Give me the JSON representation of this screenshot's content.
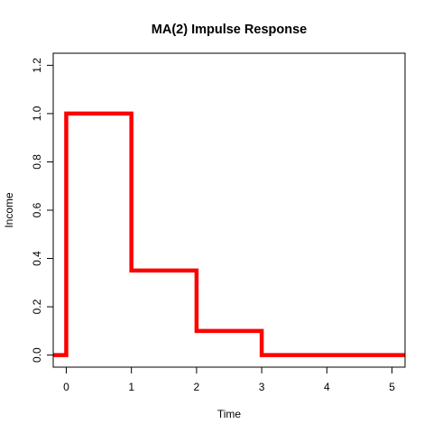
{
  "chart_data": {
    "type": "line",
    "step": true,
    "title": "MA(2) Impulse Response",
    "xlabel": "Time",
    "ylabel": "Income",
    "xlim": [
      -0.2,
      5.2
    ],
    "ylim": [
      -0.05,
      1.25
    ],
    "x_ticks": [
      0,
      1,
      2,
      3,
      4,
      5
    ],
    "x_tick_labels": [
      "0",
      "1",
      "2",
      "3",
      "4",
      "5"
    ],
    "y_ticks": [
      0.0,
      0.2,
      0.4,
      0.6,
      0.8,
      1.0,
      1.2
    ],
    "y_tick_labels": [
      "0.0",
      "0.2",
      "0.4",
      "0.6",
      "0.8",
      "1.0",
      "1.2"
    ],
    "grid": false,
    "series": [
      {
        "color": "#ff0000",
        "points": [
          {
            "x": -0.2,
            "y": 0.0
          },
          {
            "x": 0,
            "y": 0.0
          },
          {
            "x": 0,
            "y": 1.0
          },
          {
            "x": 1,
            "y": 1.0
          },
          {
            "x": 1,
            "y": 0.35
          },
          {
            "x": 2,
            "y": 0.35
          },
          {
            "x": 2,
            "y": 0.1
          },
          {
            "x": 3,
            "y": 0.1
          },
          {
            "x": 3,
            "y": 0.0
          },
          {
            "x": 5.2,
            "y": 0.0
          }
        ]
      }
    ]
  }
}
